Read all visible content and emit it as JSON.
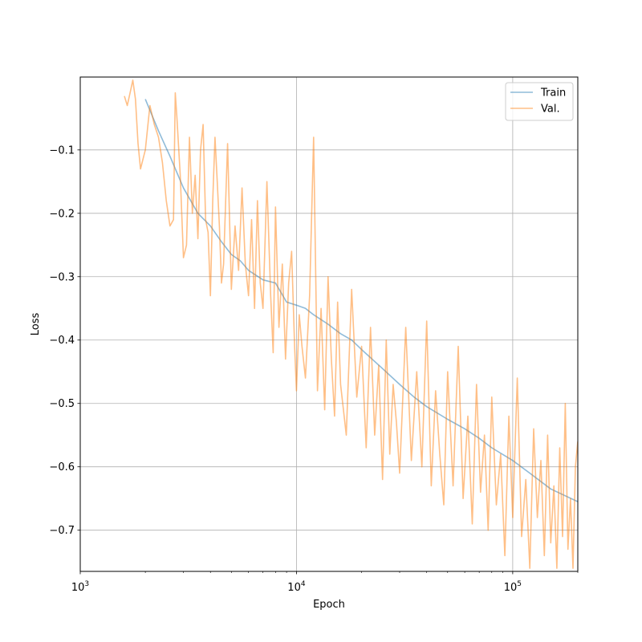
{
  "chart_data": {
    "type": "line",
    "title": "",
    "xlabel": "Epoch",
    "ylabel": "Loss",
    "x_scale": "log",
    "xlim": [
      1000,
      200000
    ],
    "ylim": [
      -0.765,
      0.015
    ],
    "x_ticks": [
      {
        "value": 1000,
        "base": "10",
        "exp": "3"
      },
      {
        "value": 10000,
        "base": "10",
        "exp": "4"
      },
      {
        "value": 100000,
        "base": "10",
        "exp": "5"
      }
    ],
    "y_ticks": [
      {
        "value": -0.1,
        "label": "−0.1"
      },
      {
        "value": -0.2,
        "label": "−0.2"
      },
      {
        "value": -0.3,
        "label": "−0.3"
      },
      {
        "value": -0.4,
        "label": "−0.4"
      },
      {
        "value": -0.5,
        "label": "−0.5"
      },
      {
        "value": -0.6,
        "label": "−0.6"
      },
      {
        "value": -0.7,
        "label": "−0.7"
      }
    ],
    "grid": true,
    "legend_position": "top-right",
    "series": [
      {
        "name": "Train",
        "color": "#1f77b4",
        "opacity": 0.5,
        "x": [
          2000,
          2300,
          2600,
          3000,
          3500,
          4000,
          4500,
          5000,
          5500,
          6000,
          7000,
          8000,
          9000,
          10000,
          11000,
          12000,
          14000,
          16000,
          18000,
          20000,
          25000,
          30000,
          35000,
          40000,
          50000,
          60000,
          70000,
          80000,
          100000,
          120000,
          150000,
          200000
        ],
        "y": [
          -0.02,
          -0.07,
          -0.11,
          -0.16,
          -0.2,
          -0.22,
          -0.245,
          -0.265,
          -0.275,
          -0.29,
          -0.305,
          -0.31,
          -0.34,
          -0.345,
          -0.35,
          -0.36,
          -0.375,
          -0.39,
          -0.4,
          -0.415,
          -0.445,
          -0.47,
          -0.49,
          -0.505,
          -0.525,
          -0.54,
          -0.555,
          -0.57,
          -0.59,
          -0.61,
          -0.635,
          -0.655
        ]
      },
      {
        "name": "Val.",
        "color": "#ff7f0e",
        "opacity": 0.5,
        "x": [
          1600,
          1650,
          1700,
          1750,
          1800,
          1850,
          1900,
          2000,
          2100,
          2200,
          2300,
          2400,
          2500,
          2600,
          2700,
          2750,
          2800,
          2900,
          3000,
          3100,
          3200,
          3300,
          3400,
          3500,
          3600,
          3700,
          3800,
          3900,
          4000,
          4100,
          4200,
          4300,
          4400,
          4500,
          4600,
          4800,
          5000,
          5200,
          5400,
          5600,
          5800,
          6000,
          6200,
          6400,
          6600,
          6800,
          7000,
          7300,
          7600,
          7800,
          8000,
          8300,
          8600,
          8900,
          9200,
          9500,
          9800,
          10000,
          10300,
          10600,
          11000,
          11500,
          12000,
          12500,
          13000,
          13500,
          14000,
          14500,
          15000,
          15500,
          16000,
          17000,
          18000,
          19000,
          20000,
          21000,
          22000,
          23000,
          24000,
          25000,
          26000,
          27000,
          28000,
          29000,
          30000,
          32000,
          34000,
          36000,
          38000,
          40000,
          42000,
          44000,
          46000,
          48000,
          50000,
          53000,
          56000,
          59000,
          62000,
          65000,
          68000,
          71000,
          74000,
          77000,
          80000,
          84000,
          88000,
          92000,
          96000,
          100000,
          105000,
          110000,
          115000,
          120000,
          125000,
          130000,
          135000,
          140000,
          145000,
          150000,
          155000,
          160000,
          165000,
          170000,
          175000,
          180000,
          185000,
          190000,
          195000,
          200000
        ],
        "y": [
          -0.015,
          -0.03,
          -0.01,
          0.01,
          -0.02,
          -0.09,
          -0.13,
          -0.1,
          -0.03,
          -0.06,
          -0.08,
          -0.12,
          -0.18,
          -0.22,
          -0.21,
          -0.01,
          -0.05,
          -0.14,
          -0.27,
          -0.25,
          -0.08,
          -0.2,
          -0.14,
          -0.24,
          -0.1,
          -0.06,
          -0.21,
          -0.23,
          -0.33,
          -0.18,
          -0.08,
          -0.15,
          -0.22,
          -0.31,
          -0.28,
          -0.09,
          -0.32,
          -0.22,
          -0.29,
          -0.16,
          -0.28,
          -0.33,
          -0.21,
          -0.35,
          -0.18,
          -0.31,
          -0.35,
          -0.15,
          -0.33,
          -0.42,
          -0.19,
          -0.38,
          -0.28,
          -0.43,
          -0.31,
          -0.26,
          -0.41,
          -0.48,
          -0.36,
          -0.41,
          -0.46,
          -0.33,
          -0.08,
          -0.48,
          -0.35,
          -0.51,
          -0.3,
          -0.43,
          -0.52,
          -0.34,
          -0.47,
          -0.55,
          -0.32,
          -0.49,
          -0.41,
          -0.57,
          -0.38,
          -0.55,
          -0.44,
          -0.62,
          -0.4,
          -0.58,
          -0.47,
          -0.53,
          -0.61,
          -0.38,
          -0.59,
          -0.45,
          -0.6,
          -0.37,
          -0.63,
          -0.48,
          -0.58,
          -0.66,
          -0.45,
          -0.63,
          -0.41,
          -0.65,
          -0.52,
          -0.69,
          -0.47,
          -0.64,
          -0.55,
          -0.7,
          -0.49,
          -0.66,
          -0.58,
          -0.74,
          -0.52,
          -0.68,
          -0.46,
          -0.71,
          -0.62,
          -0.76,
          -0.54,
          -0.68,
          -0.59,
          -0.74,
          -0.55,
          -0.72,
          -0.63,
          -0.76,
          -0.57,
          -0.71,
          -0.5,
          -0.73,
          -0.65,
          -0.76,
          -0.6,
          -0.56
        ]
      }
    ]
  }
}
